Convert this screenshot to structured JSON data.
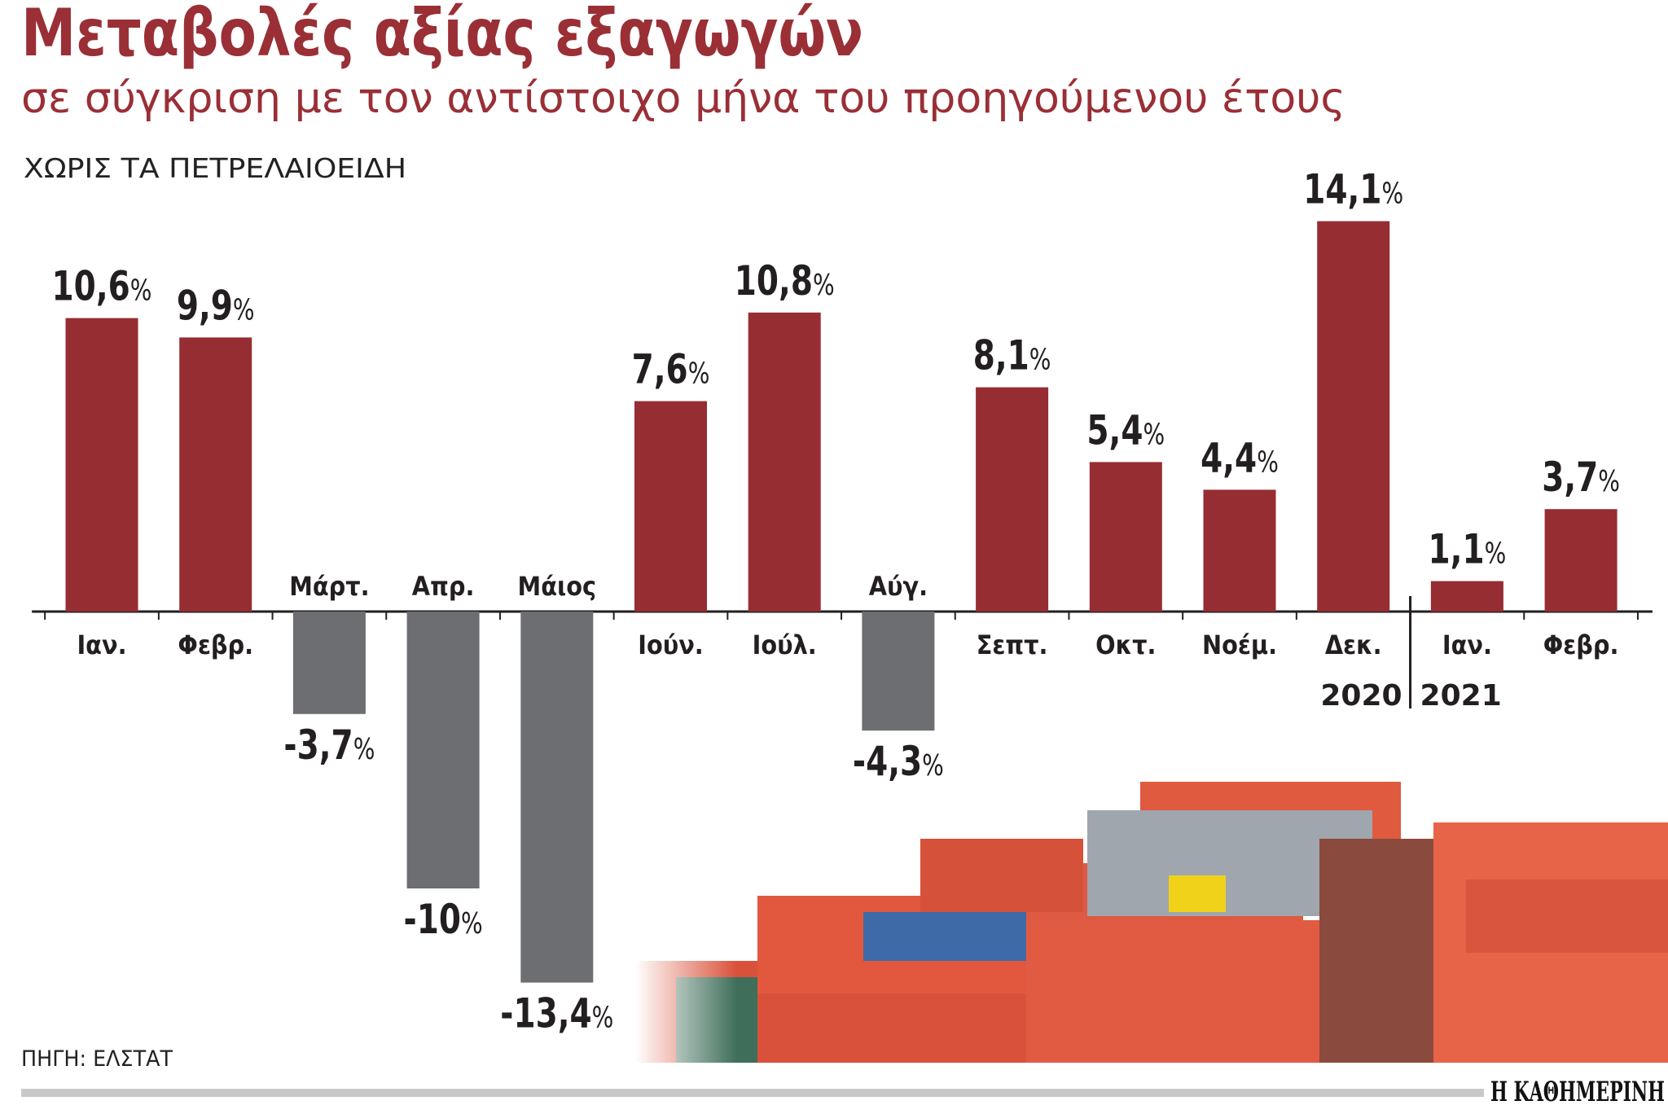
{
  "header": {
    "title": "Μεταβολές αξίας εξαγωγών",
    "subtitle": "σε σύγκριση με τον αντίστοιχο μήνα του προηγούμενου έτους",
    "note": "ΧΩΡΙΣ ΤΑ ΠΕΤΡΕΛΑΙΟΕΙΔΗ"
  },
  "footer": {
    "source": "ΠΗΓΗ: ΕΛΣΤΑΤ",
    "logo": "Η ΚΑΘΗΜΕΡΙΝΗ"
  },
  "colors": {
    "positive": "#962d33",
    "negative": "#6d6e71",
    "title": "#9a2f36"
  },
  "chart_data": {
    "type": "bar",
    "title": "Μεταβολές αξίας εξαγωγών",
    "subtitle": "σε σύγκριση με τον αντίστοιχο μήνα του προηγούμενου έτους",
    "categories": [
      "Ιαν.",
      "Φεβρ.",
      "Μάρτ.",
      "Απρ.",
      "Μάιος",
      "Ιούν.",
      "Ιούλ.",
      "Αύγ.",
      "Σεπτ.",
      "Οκτ.",
      "Νοέμ.",
      "Δεκ.",
      "Ιαν.",
      "Φεβρ."
    ],
    "values": [
      10.6,
      9.9,
      -3.7,
      -10,
      -13.4,
      7.6,
      10.8,
      -4.3,
      8.1,
      5.4,
      4.4,
      14.1,
      1.1,
      3.7
    ],
    "value_labels": [
      "10,6",
      "9,9",
      "-3,7",
      "-10",
      "-13,4",
      "7,6",
      "10,8",
      "-4,3",
      "8,1",
      "5,4",
      "4,4",
      "14,1",
      "1,1",
      "3,7"
    ],
    "unit": "%",
    "year_groups": [
      {
        "label": "2020",
        "categories": 12
      },
      {
        "label": "2021",
        "categories": 2
      }
    ],
    "ylim": [
      -13.4,
      14.1
    ],
    "grid": false,
    "legend": "none"
  }
}
